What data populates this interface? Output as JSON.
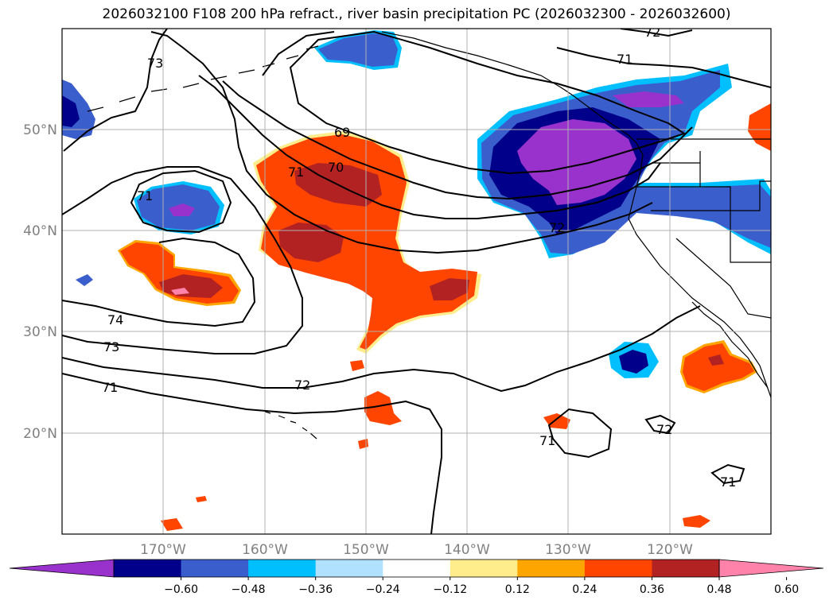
{
  "title": "2026032100 F108 200 hPa refract., river basin precipitation PC (2026032300 - 2026032600)",
  "lat_labels": [
    "50°N",
    "40°N",
    "30°N",
    "20°N"
  ],
  "lon_labels": [
    "170°W",
    "160°W",
    "150°W",
    "140°W",
    "130°W",
    "120°W"
  ],
  "contour_levels": [
    "69",
    "70",
    "71",
    "72",
    "73",
    "74"
  ],
  "colorbar": {
    "ticks": [
      "−0.60",
      "−0.48",
      "−0.36",
      "−0.24",
      "−0.12",
      "0.12",
      "0.24",
      "0.36",
      "0.48",
      "0.60"
    ],
    "colors": [
      "#9932cc",
      "#00008b",
      "#3a5fcd",
      "#00bfff",
      "#b0e2ff",
      "#ffffff",
      "#ffec8b",
      "#ffa500",
      "#ff4500",
      "#b22222",
      "#ff82ab"
    ]
  }
}
